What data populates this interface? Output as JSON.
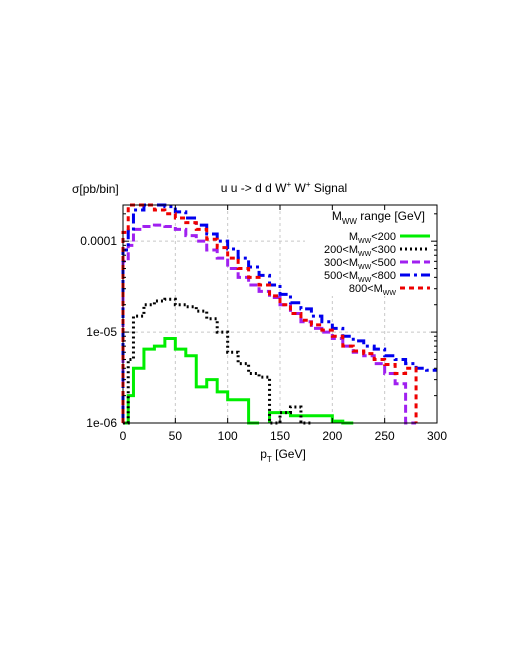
{
  "chart_data": {
    "type": "line",
    "title": "u u -> d d W",
    "title_sup1": "+",
    "title_mid": " W",
    "title_sup2": "+",
    "title_end": " Signal",
    "ylabel": "σ[pb/bin]",
    "xlabel_main": "p",
    "xlabel_sub": "T",
    "xlabel_unit": " [GeV]",
    "xlim": [
      0,
      300
    ],
    "ylim": [
      1e-06,
      0.00025
    ],
    "yscale": "log",
    "grid": true,
    "legend_position": "top-right",
    "legend_title": {
      "main": "M",
      "sub": "WW",
      "rest": " range [GeV]"
    },
    "x_ticks": [
      {
        "v": 0,
        "label": "0"
      },
      {
        "v": 50,
        "label": "50"
      },
      {
        "v": 100,
        "label": "100"
      },
      {
        "v": 150,
        "label": "150"
      },
      {
        "v": 200,
        "label": "200"
      },
      {
        "v": 250,
        "label": "250"
      },
      {
        "v": 300,
        "label": "300"
      }
    ],
    "y_ticks": [
      {
        "v": 1e-06,
        "label": "1e-06"
      },
      {
        "v": 1e-05,
        "label": "1e-05"
      },
      {
        "v": 0.0001,
        "label": "0.0001"
      }
    ],
    "bin_edges": [
      0,
      5,
      10,
      20,
      30,
      40,
      50,
      60,
      70,
      80,
      90,
      100,
      110,
      120,
      130,
      140,
      150,
      160,
      170,
      180,
      190,
      200,
      210,
      220,
      230,
      240,
      250,
      260,
      270,
      280,
      290,
      300
    ],
    "series": [
      {
        "name": "M<200",
        "label": {
          "pre": "",
          "main": "M",
          "sub": "WW",
          "post": "<200"
        },
        "color": "#00ee00",
        "dash": "",
        "width": 3,
        "values": [
          1e-06,
          2e-06,
          4e-06,
          6.5e-06,
          7e-06,
          8.5e-06,
          6.5e-06,
          5.5e-06,
          2.5e-06,
          3e-06,
          2.2e-06,
          1.8e-06,
          1.8e-06,
          1e-06,
          null,
          1.3e-06,
          1.3e-06,
          1.2e-06,
          1.2e-06,
          1.2e-06,
          1.2e-06,
          1.05e-06,
          1e-06
        ]
      },
      {
        "name": "200<M<300",
        "label": {
          "pre": "200<",
          "main": "M",
          "sub": "WW",
          "post": "<300"
        },
        "color": "#000000",
        "dash": "2,3",
        "width": 3,
        "values": [
          1e-06,
          5e-06,
          1.5e-05,
          2e-05,
          2.2e-05,
          2.3e-05,
          2e-05,
          1.9e-05,
          1.7e-05,
          1.4e-05,
          1e-05,
          6e-06,
          4.5e-06,
          3.5e-06,
          3.2e-06,
          1e-06,
          1.3e-06,
          1.5e-06,
          1e-06
        ]
      },
      {
        "name": "300<M<500",
        "label": {
          "pre": "300<",
          "main": "M",
          "sub": "WW",
          "post": "<500"
        },
        "color": "#a020f0",
        "dash": "8,4",
        "width": 3,
        "values": [
          6e-05,
          9e-05,
          0.000135,
          0.000145,
          0.00015,
          0.000145,
          0.000135,
          0.000115,
          0.0001,
          8e-05,
          6.5e-05,
          5e-05,
          4e-05,
          3.3e-05,
          2.8e-05,
          2.4e-05,
          2e-05,
          1.6e-05,
          1.3e-05,
          1.1e-05,
          1e-05,
          8.5e-06,
          7e-06,
          6e-06,
          5.5e-06,
          4.5e-06,
          3.5e-06,
          2.7e-06,
          1e-06
        ]
      },
      {
        "name": "500<M<800",
        "label": {
          "pre": "500<",
          "main": "M",
          "sub": "WW",
          "post": "<800"
        },
        "color": "#0000ee",
        "dash": "10,4,3,4",
        "width": 3,
        "values": [
          8e-05,
          0.00013,
          0.00022,
          0.00026,
          0.00026,
          0.00024,
          0.00021,
          0.00018,
          0.00015,
          0.00012,
          0.0001,
          8.2e-05,
          6.5e-05,
          5.2e-05,
          4.2e-05,
          3.3e-05,
          2.6e-05,
          2.1e-05,
          1.8e-05,
          1.5e-05,
          1.3e-05,
          1.1e-05,
          9e-06,
          8e-06,
          7e-06,
          6.5e-06,
          5.5e-06,
          5e-06,
          4.5e-06,
          4e-06,
          3.8e-06
        ]
      },
      {
        "name": "800<M",
        "label": {
          "pre": "800<",
          "main": "M",
          "sub": "WW",
          "post": ""
        },
        "color": "#ee0000",
        "dash": "5,4",
        "width": 3,
        "values": [
          0.000125,
          0.00025,
          0.00028,
          0.00025,
          0.00022,
          0.0002,
          0.00018,
          0.00016,
          0.000135,
          0.000105,
          8.5e-05,
          6.5e-05,
          5e-05,
          4e-05,
          3.3e-05,
          2.5e-05,
          2e-05,
          1.6e-05,
          1.35e-05,
          1.2e-05,
          1.05e-05,
          9e-06,
          7e-06,
          6.2e-06,
          5.8e-06,
          5e-06,
          4.4e-06,
          3.5e-06,
          4e-06
        ]
      }
    ]
  }
}
